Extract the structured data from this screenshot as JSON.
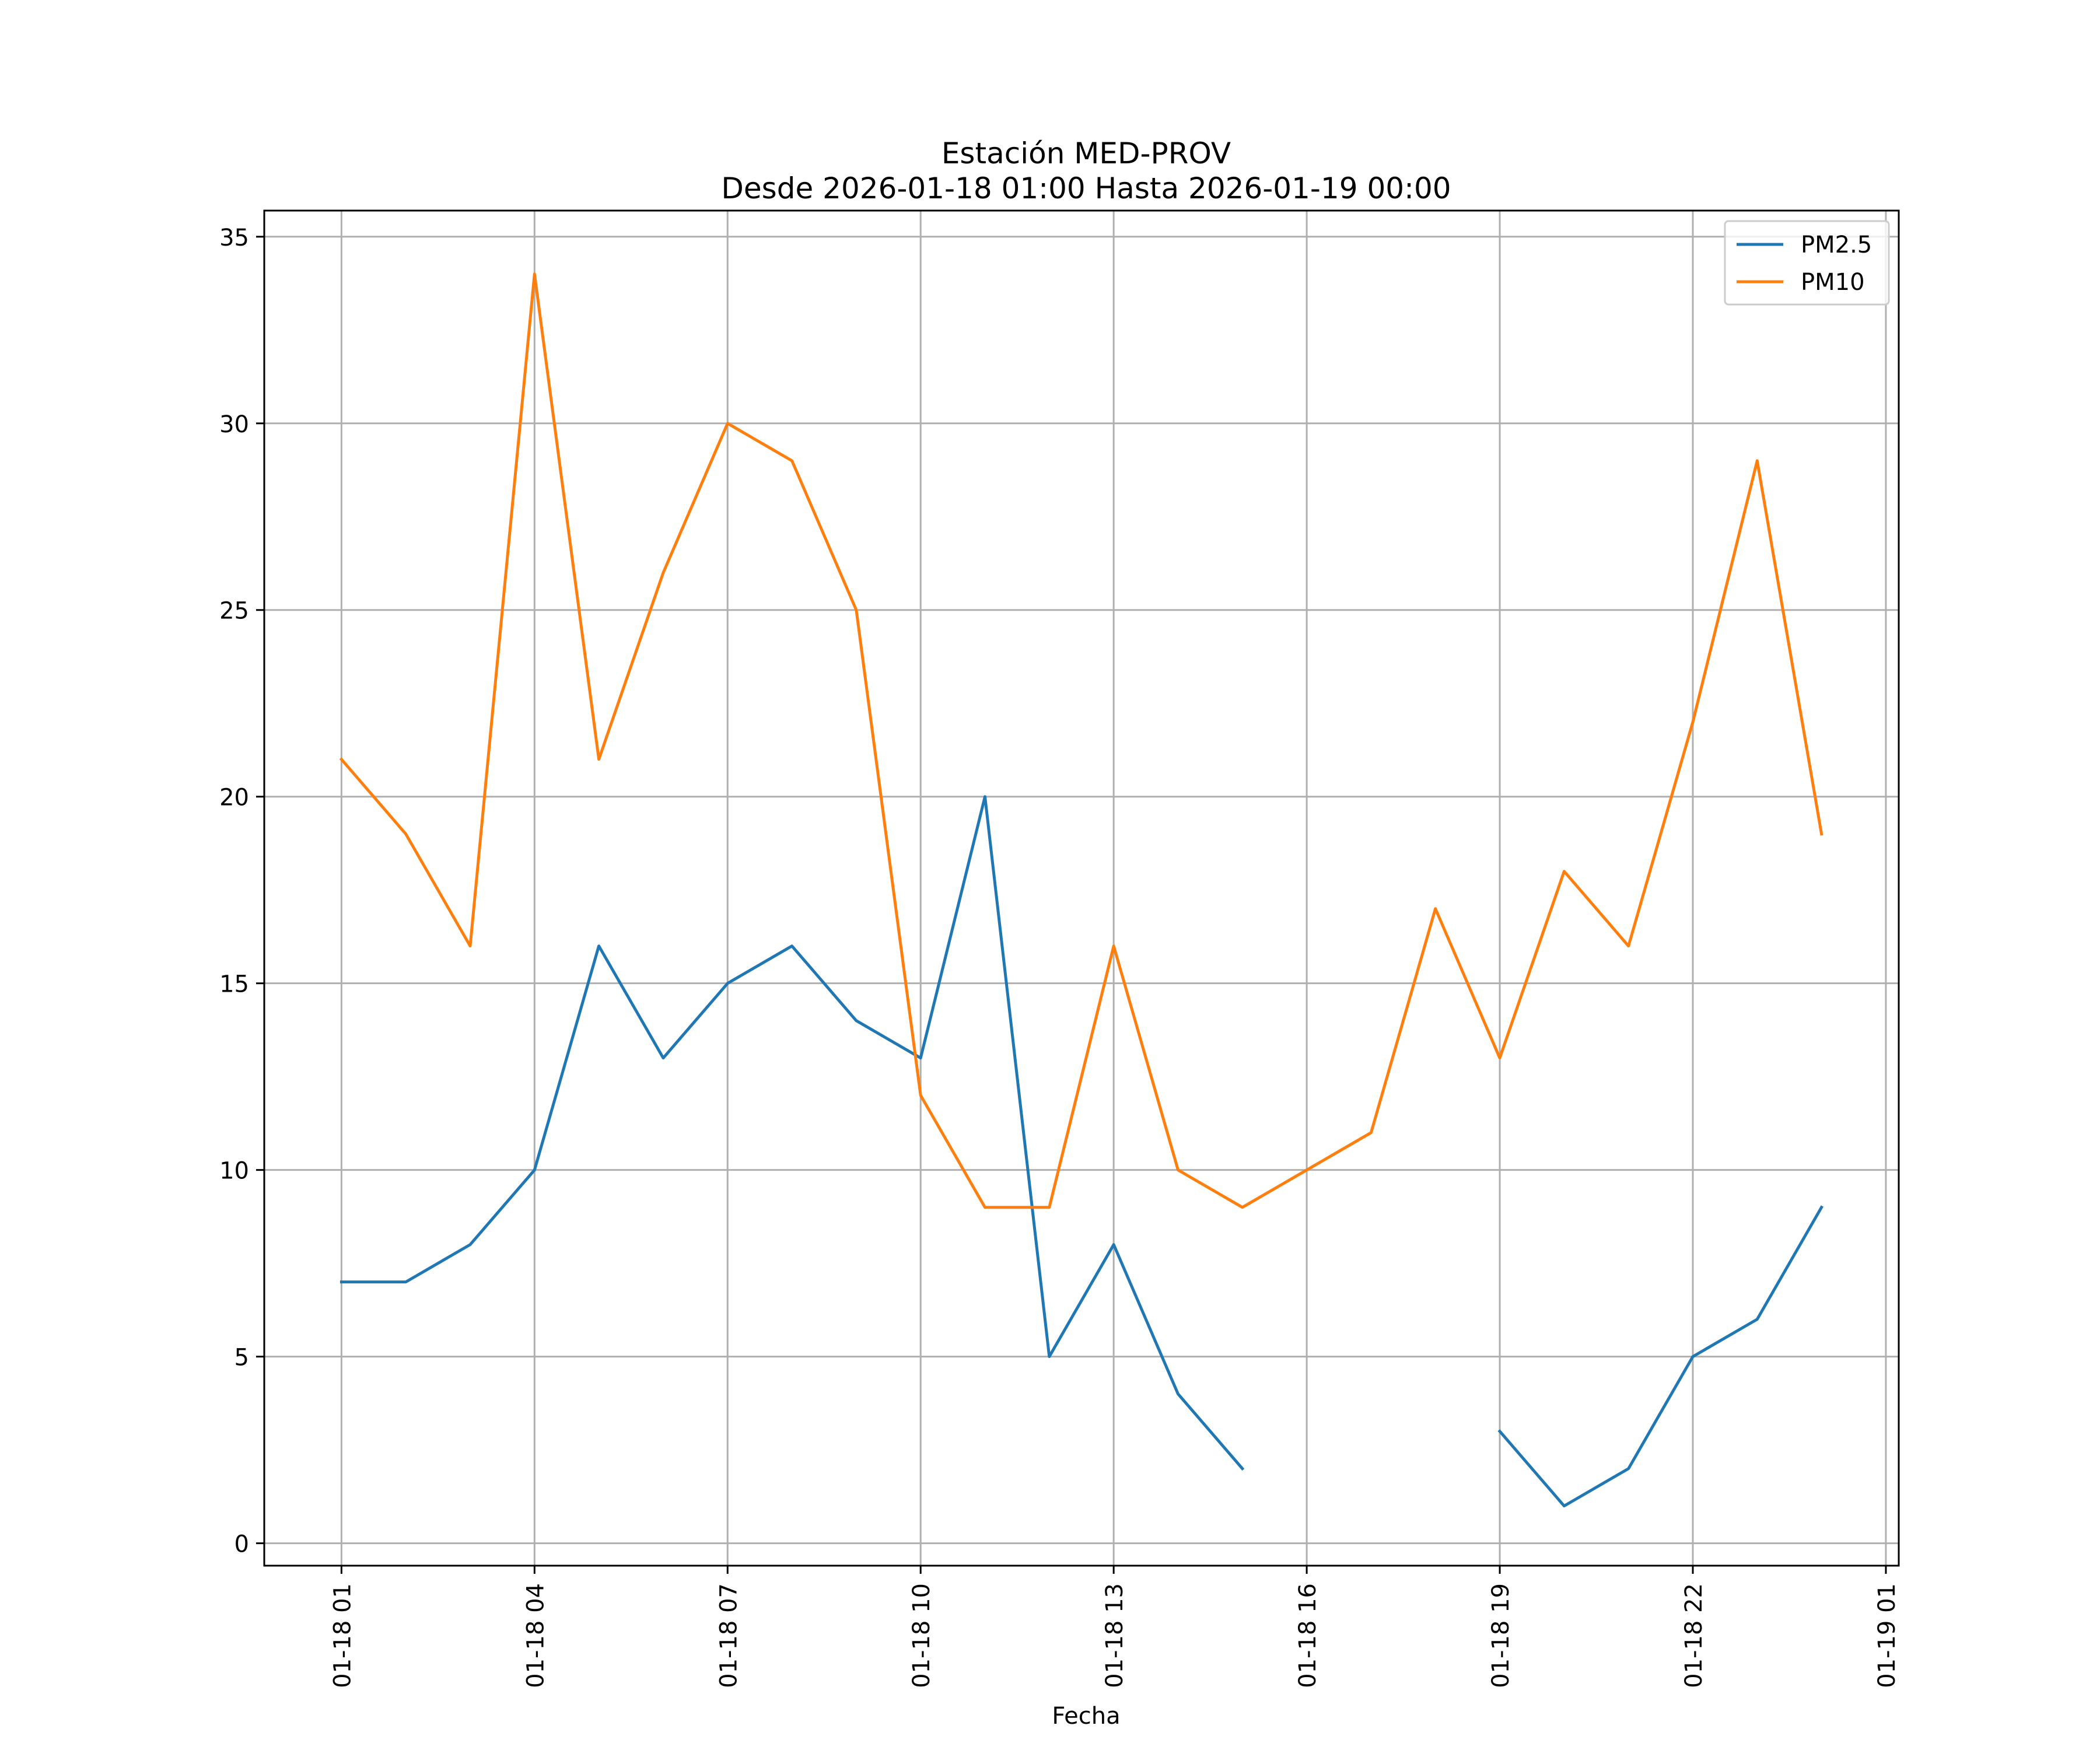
{
  "chart_data": {
    "type": "line",
    "title_line1": "Estación MED-PROV",
    "title_line2": "Desde 2026-01-18 01:00 Hasta 2026-01-19 00:00",
    "xlabel": "Fecha",
    "ylabel": "",
    "x_hours": [
      1,
      2,
      3,
      4,
      5,
      6,
      7,
      8,
      9,
      10,
      11,
      12,
      13,
      14,
      15,
      16,
      17,
      18,
      19,
      20,
      21,
      22,
      23,
      24
    ],
    "xlim": [
      -0.2,
      25.2
    ],
    "ylim": [
      -0.6,
      35.7
    ],
    "xticks": [
      {
        "hour": 1,
        "label": "01-18 01"
      },
      {
        "hour": 4,
        "label": "01-18 04"
      },
      {
        "hour": 7,
        "label": "01-18 07"
      },
      {
        "hour": 10,
        "label": "01-18 10"
      },
      {
        "hour": 13,
        "label": "01-18 13"
      },
      {
        "hour": 16,
        "label": "01-18 16"
      },
      {
        "hour": 19,
        "label": "01-18 19"
      },
      {
        "hour": 22,
        "label": "01-18 22"
      },
      {
        "hour": 25,
        "label": "01-19 01"
      }
    ],
    "yticks": [
      {
        "value": 0,
        "label": "0"
      },
      {
        "value": 5,
        "label": "5"
      },
      {
        "value": 10,
        "label": "10"
      },
      {
        "value": 15,
        "label": "15"
      },
      {
        "value": 20,
        "label": "20"
      },
      {
        "value": 25,
        "label": "25"
      },
      {
        "value": 30,
        "label": "30"
      },
      {
        "value": 35,
        "label": "35"
      }
    ],
    "grid": true,
    "legend_position": "top-right",
    "series": [
      {
        "name": "PM2.5",
        "color": "#1f77b4",
        "values": [
          7,
          7,
          8,
          10,
          16,
          13,
          15,
          16,
          14,
          13,
          20,
          5,
          8,
          4,
          2,
          null,
          null,
          null,
          3,
          1,
          2,
          5,
          6,
          9
        ]
      },
      {
        "name": "PM10",
        "color": "#ff7f0e",
        "values": [
          21,
          19,
          16,
          34,
          21,
          26,
          30,
          29,
          25,
          12,
          9,
          9,
          16,
          10,
          9,
          10,
          11,
          17,
          13,
          18,
          16,
          22,
          29,
          19
        ]
      }
    ]
  }
}
